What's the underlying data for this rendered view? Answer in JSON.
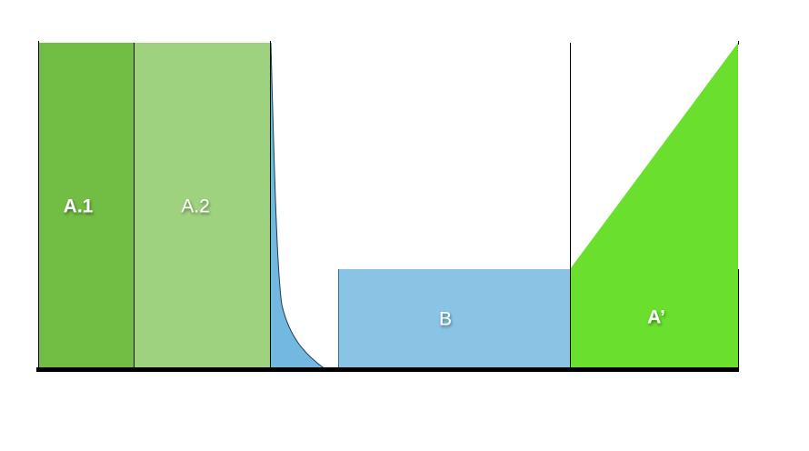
{
  "labels": {
    "a1": "A.1",
    "a2": "A.2",
    "b": "B",
    "a_prime": "A’"
  },
  "colors": {
    "a1": "#72bd43",
    "a2": "#9fd27e",
    "decay": "#6cb4df",
    "b": "#8ac4e4",
    "a_prime": "#6adf2d",
    "axis": "#000000"
  }
}
